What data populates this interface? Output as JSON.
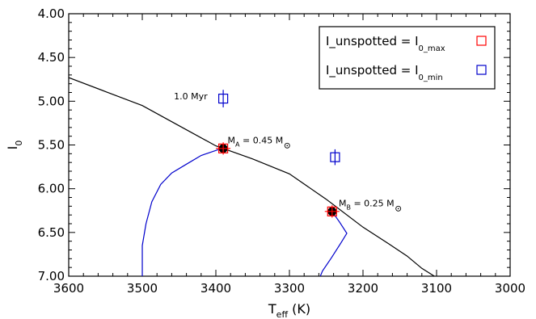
{
  "chart_data": {
    "type": "line",
    "title": "",
    "xlabel": {
      "main": "T",
      "sub": "eff",
      "unit": "(K)"
    },
    "ylabel": {
      "main": "I",
      "sub": "0"
    },
    "xlim": [
      3600,
      3000
    ],
    "ylim": [
      7.0,
      4.0
    ],
    "x_inverted": true,
    "y_inverted": true,
    "x_ticks": [
      3600,
      3500,
      3400,
      3300,
      3200,
      3100,
      3000
    ],
    "y_ticks": [
      4.0,
      4.5,
      5.0,
      5.5,
      6.0,
      6.5,
      7.0
    ],
    "x_tick_labels": [
      "3600",
      "3500",
      "3400",
      "3300",
      "3200",
      "3100",
      "3000"
    ],
    "y_tick_labels": [
      "4.00",
      "4.50",
      "5.00",
      "5.50",
      "6.00",
      "6.50",
      "7.00"
    ],
    "grid": false,
    "series": [
      {
        "color": "#000000",
        "points": [
          [
            3600,
            4.73
          ],
          [
            3550,
            4.89
          ],
          [
            3500,
            5.05
          ],
          [
            3450,
            5.28
          ],
          [
            3400,
            5.51
          ],
          [
            3350,
            5.66
          ],
          [
            3300,
            5.83
          ],
          [
            3250,
            6.12
          ],
          [
            3200,
            6.44
          ],
          [
            3165,
            6.63
          ],
          [
            3140,
            6.77
          ],
          [
            3120,
            6.91
          ],
          [
            3103,
            7.0
          ]
        ]
      },
      {
        "color": "#0000cc",
        "points": [
          [
            3392,
            5.54
          ],
          [
            3420,
            5.62
          ],
          [
            3440,
            5.72
          ],
          [
            3460,
            5.82
          ],
          [
            3475,
            5.95
          ],
          [
            3487,
            6.15
          ],
          [
            3495,
            6.4
          ],
          [
            3500,
            6.65
          ],
          [
            3500,
            7.0
          ]
        ]
      },
      {
        "color": "#0000cc",
        "points": [
          [
            3243,
            6.25
          ],
          [
            3232,
            6.38
          ],
          [
            3222,
            6.51
          ],
          [
            3230,
            6.62
          ],
          [
            3243,
            6.79
          ],
          [
            3255,
            6.94
          ],
          [
            3258,
            7.0
          ]
        ]
      }
    ],
    "points": [
      {
        "x": 3390,
        "y": 5.54,
        "marker": "filled-circle",
        "color": "#000000"
      },
      {
        "x": 3242,
        "y": 6.26,
        "marker": "filled-circle",
        "color": "#000000"
      },
      {
        "x": 3390,
        "y": 5.54,
        "marker": "square-errorbar",
        "color": "#ff0000",
        "yerr": 0.07
      },
      {
        "x": 3242,
        "y": 6.26,
        "marker": "square-errorbar",
        "color": "#ff0000",
        "yerr": 0.07
      },
      {
        "x": 3390,
        "y": 4.97,
        "marker": "square-errorbar",
        "color": "#0000cc",
        "yerr": 0.1
      },
      {
        "x": 3238,
        "y": 5.64,
        "marker": "square-errorbar",
        "color": "#0000cc",
        "yerr": 0.09
      }
    ],
    "annotations": [
      {
        "x": 3457,
        "y": 4.98,
        "text": "1.0 Myr"
      },
      {
        "x": 3384,
        "y": 5.48,
        "main": "M",
        "sub": "A",
        "rest": " = 0.45 M",
        "symbol": "sun"
      },
      {
        "x": 3233,
        "y": 6.2,
        "main": "M",
        "sub": "B",
        "rest": " = 0.25 M",
        "symbol": "sun"
      }
    ],
    "legend": {
      "placement": "top-right",
      "entries": [
        {
          "text": "I_unspotted = I",
          "sub": "0_max",
          "color": "#ff0000",
          "marker": "square"
        },
        {
          "text": "I_unspotted = I",
          "sub": "0_min",
          "color": "#0000cc",
          "marker": "square"
        }
      ]
    }
  }
}
